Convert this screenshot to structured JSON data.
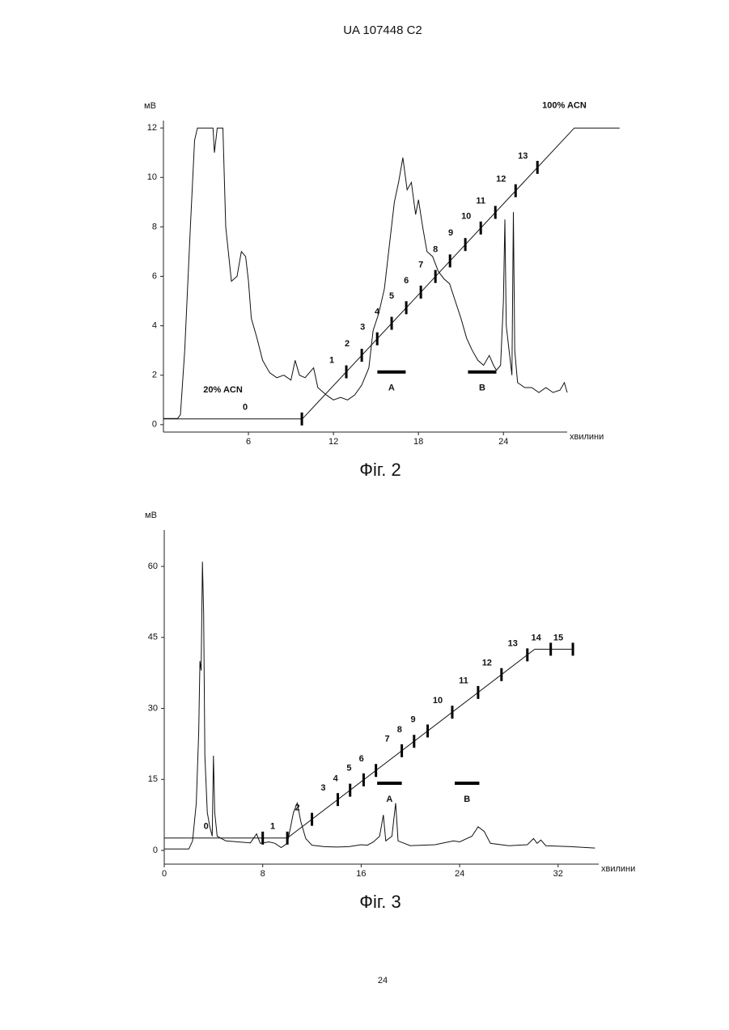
{
  "header": "UA   107448   C2",
  "page_number": "24",
  "chart_data": [
    {
      "type": "line",
      "caption": "Фіг. 2",
      "ylabel": "мВ",
      "xlabel": "хвилини",
      "xlim": [
        0,
        28.5
      ],
      "ylim": [
        -0.3,
        12.3
      ],
      "xticks": [
        6,
        12,
        18,
        24
      ],
      "yticks": [
        0,
        2,
        4,
        6,
        8,
        10,
        12
      ],
      "series": [
        {
          "color": "#111",
          "x": [
            0,
            1,
            1.2,
            1.5,
            1.9,
            2.2,
            2.4,
            3.5,
            3.6,
            3.8,
            4.2,
            4.4,
            4.8,
            5.2,
            5.5,
            5.8,
            6,
            6.2,
            6.6,
            7,
            7.5,
            8,
            8.5,
            9,
            9.3,
            9.6,
            10,
            10.3,
            10.6,
            10.9,
            11.5,
            12,
            12.5,
            13,
            13.5,
            14,
            14.5,
            14.8,
            15.2,
            15.6,
            16,
            16.3,
            16.6,
            16.9,
            17.2,
            17.5,
            17.8,
            18,
            18.3,
            18.6,
            19,
            19.4,
            19.8,
            20.2,
            20.6,
            21,
            21.4,
            21.8,
            22.2,
            22.6,
            23,
            23.3,
            23.5,
            23.8,
            24,
            24.1,
            24.2,
            24.4,
            24.6,
            24.7,
            24.8,
            25,
            25.5,
            26,
            26.5,
            27,
            27.5,
            28,
            28.3,
            28.5
          ],
          "values": [
            0.25,
            0.25,
            0.4,
            3,
            8,
            11.5,
            12,
            12,
            11,
            12,
            12,
            8,
            5.8,
            6,
            7,
            6.8,
            5.8,
            4.3,
            3.5,
            2.6,
            2.1,
            1.9,
            2,
            1.8,
            2.6,
            2,
            1.9,
            2.1,
            2.3,
            1.5,
            1.2,
            1.0,
            1.1,
            1.0,
            1.2,
            1.6,
            2.3,
            3.8,
            4.5,
            5.5,
            7.5,
            9,
            9.8,
            10.8,
            9.5,
            9.8,
            8.5,
            9.1,
            8,
            7,
            6.8,
            6.2,
            5.9,
            5.7,
            5,
            4.3,
            3.5,
            3,
            2.6,
            2.4,
            2.8,
            2.4,
            2.2,
            2.4,
            5,
            8.3,
            4,
            3,
            2,
            8.6,
            3,
            1.7,
            1.5,
            1.5,
            1.3,
            1.5,
            1.3,
            1.4,
            1.7,
            1.3
          ]
        }
      ],
      "gradient": {
        "x": [
          0,
          9.8,
          29.0,
          32.2
        ],
        "values": [
          0.23,
          0.23,
          12,
          12
        ]
      },
      "fractions": {
        "labels": [
          "0",
          "1",
          "2",
          "3",
          "4",
          "5",
          "6",
          "7",
          "8",
          "9",
          "10",
          "11",
          "12",
          "13"
        ],
        "x": [
          9.77,
          12.91,
          14.0,
          15.09,
          16.11,
          17.14,
          18.17,
          19.2,
          20.23,
          21.31,
          22.4,
          23.43,
          24.86,
          26.4
        ]
      },
      "bars": [
        {
          "label": "A",
          "x": [
            15.1,
            17.1
          ],
          "y": 2.13
        },
        {
          "label": "B",
          "x": [
            21.5,
            23.5
          ],
          "y": 2.13
        }
      ],
      "annotations": [
        {
          "text": "20% ACN",
          "x": 4.2,
          "y": 1.4
        },
        {
          "text": "100% ACN",
          "x": 28.3,
          "y": 12.9
        }
      ]
    },
    {
      "type": "line",
      "caption": "Фіг. 3",
      "ylabel": "мВ",
      "xlabel": "хвилини",
      "xlim": [
        0,
        35.3
      ],
      "ylim": [
        -2.9,
        67.7
      ],
      "xticks": [
        0,
        8,
        16,
        24,
        32
      ],
      "yticks": [
        0,
        15,
        30,
        45,
        60
      ],
      "series": [
        {
          "color": "#111",
          "x": [
            0,
            2,
            2.3,
            2.6,
            2.8,
            2.9,
            3.0,
            3.1,
            3.2,
            3.3,
            3.5,
            3.7,
            3.9,
            4.0,
            4.1,
            4.3,
            5,
            6,
            7,
            7.5,
            7.8,
            8.5,
            9,
            9.5,
            10,
            10.5,
            10.8,
            11.1,
            11.5,
            12,
            13,
            14,
            15,
            16,
            16.5,
            17,
            17.5,
            17.8,
            18,
            18.5,
            18.8,
            19,
            20,
            22,
            23.5,
            24,
            25,
            25.5,
            26,
            26.5,
            28,
            29.5,
            30,
            30.3,
            30.6,
            31,
            33,
            35
          ],
          "values": [
            0.3,
            0.3,
            2,
            10,
            25,
            40,
            38,
            61,
            50,
            20,
            8,
            5,
            3,
            20,
            8,
            3,
            2,
            1.8,
            1.6,
            3.5,
            1.5,
            1.8,
            1.5,
            0.6,
            1.5,
            8,
            10,
            6,
            2.5,
            1.1,
            0.8,
            0.7,
            0.8,
            1.2,
            1.1,
            1.8,
            3,
            7.5,
            2,
            3,
            10,
            2,
            1,
            1.2,
            2,
            1.8,
            3,
            5,
            4,
            1.5,
            1,
            1.2,
            2.5,
            1.5,
            2.2,
            1,
            0.8,
            0.5
          ]
        }
      ],
      "gradient": {
        "x": [
          0,
          10.0,
          30.1,
          33.2
        ],
        "values": [
          2.6,
          2.6,
          42.5,
          42.5
        ]
      },
      "fractions": {
        "labels": [
          "0",
          "1",
          "2",
          "3",
          "4",
          "5",
          "6",
          "7",
          "8",
          "9",
          "10",
          "11",
          "12",
          "13",
          "14",
          "15"
        ],
        "x": [
          8.0,
          10.0,
          12.0,
          14.1,
          15.1,
          16.2,
          17.2,
          19.3,
          20.3,
          21.4,
          23.4,
          25.5,
          27.4,
          29.5,
          31.4,
          33.2
        ]
      },
      "bars": [
        {
          "label": "A",
          "x": [
            17.3,
            19.3
          ],
          "y": 14.2
        },
        {
          "label": "B",
          "x": [
            23.6,
            25.6
          ],
          "y": 14.2
        }
      ],
      "annotations": []
    }
  ]
}
